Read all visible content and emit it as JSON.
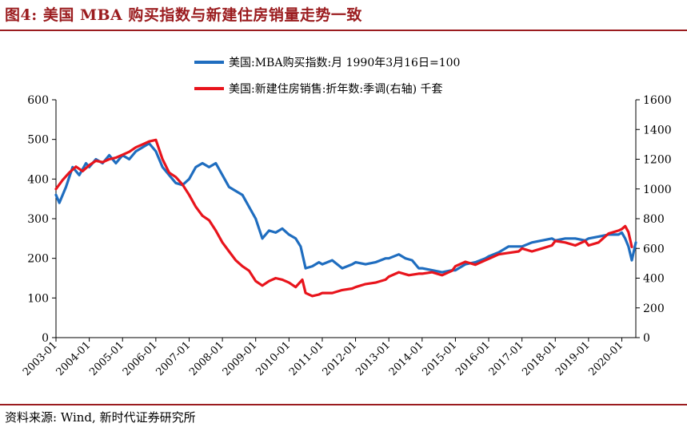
{
  "header": {
    "title": "图4:  美国 MBA 购买指数与新建住房销量走势一致"
  },
  "footer": {
    "source": "资料来源:  Wind, 新时代证券研究所"
  },
  "colors": {
    "title": "#9b1c1f",
    "mba_series": "#1f6dbf",
    "sales_series": "#e8141c",
    "axis": "#000000"
  },
  "chart_data": {
    "type": "line",
    "grid": false,
    "legend_position": "top",
    "x_ticks": [
      "2003-01",
      "2004-01",
      "2005-01",
      "2006-01",
      "2007-01",
      "2008-01",
      "2009-01",
      "2010-01",
      "2011-01",
      "2012-01",
      "2013-01",
      "2014-01",
      "2015-01",
      "2016-01",
      "2017-01",
      "2018-01",
      "2019-01",
      "2020-01"
    ],
    "x_range": [
      2003.0,
      2020.42
    ],
    "y_left": {
      "range": [
        0,
        600
      ],
      "ticks": [
        "0",
        "100",
        "200",
        "300",
        "400",
        "500",
        "600"
      ]
    },
    "y_right": {
      "range": [
        0,
        1600
      ],
      "ticks": [
        "0",
        "200",
        "400",
        "600",
        "800",
        "1000",
        "1200",
        "1400",
        "1600"
      ]
    },
    "series": [
      {
        "name": "美国:MBA购买指数:月 1990年3月16日=100",
        "axis": "left",
        "color": "#1f6dbf",
        "x": [
          2003.0,
          2003.1,
          2003.3,
          2003.5,
          2003.7,
          2003.9,
          2004.0,
          2004.2,
          2004.4,
          2004.6,
          2004.8,
          2005.0,
          2005.2,
          2005.4,
          2005.6,
          2005.8,
          2006.0,
          2006.2,
          2006.4,
          2006.6,
          2006.8,
          2007.0,
          2007.2,
          2007.4,
          2007.6,
          2007.8,
          2008.0,
          2008.2,
          2008.4,
          2008.6,
          2008.8,
          2009.0,
          2009.2,
          2009.4,
          2009.6,
          2009.8,
          2010.0,
          2010.2,
          2010.35,
          2010.5,
          2010.7,
          2010.9,
          2011.0,
          2011.3,
          2011.6,
          2011.9,
          2012.0,
          2012.3,
          2012.6,
          2012.9,
          2013.0,
          2013.3,
          2013.5,
          2013.7,
          2013.9,
          2014.0,
          2014.3,
          2014.6,
          2014.9,
          2015.0,
          2015.3,
          2015.6,
          2015.9,
          2016.0,
          2016.3,
          2016.6,
          2016.9,
          2017.0,
          2017.3,
          2017.6,
          2017.9,
          2018.0,
          2018.3,
          2018.6,
          2018.9,
          2019.0,
          2019.3,
          2019.6,
          2019.9,
          2020.0,
          2020.1,
          2020.2,
          2020.3,
          2020.42
        ],
        "values": [
          360,
          340,
          380,
          430,
          410,
          440,
          430,
          450,
          440,
          460,
          440,
          460,
          450,
          470,
          480,
          490,
          470,
          430,
          410,
          390,
          385,
          400,
          430,
          440,
          430,
          440,
          410,
          380,
          370,
          360,
          330,
          300,
          250,
          270,
          265,
          275,
          260,
          250,
          230,
          175,
          180,
          190,
          185,
          195,
          175,
          185,
          190,
          185,
          190,
          200,
          200,
          210,
          200,
          195,
          175,
          175,
          170,
          165,
          170,
          170,
          185,
          190,
          200,
          205,
          215,
          230,
          230,
          230,
          240,
          245,
          250,
          245,
          250,
          250,
          245,
          250,
          255,
          260,
          260,
          265,
          250,
          230,
          195,
          240
        ]
      },
      {
        "name": "美国:新建住房销售:折年数:季调(右轴) 千套",
        "axis": "right",
        "color": "#e8141c",
        "x": [
          2003.0,
          2003.2,
          2003.4,
          2003.6,
          2003.8,
          2004.0,
          2004.2,
          2004.4,
          2004.6,
          2004.8,
          2005.0,
          2005.2,
          2005.4,
          2005.6,
          2005.8,
          2006.0,
          2006.2,
          2006.4,
          2006.6,
          2006.8,
          2007.0,
          2007.2,
          2007.4,
          2007.6,
          2007.8,
          2008.0,
          2008.2,
          2008.4,
          2008.6,
          2008.8,
          2009.0,
          2009.2,
          2009.4,
          2009.6,
          2009.8,
          2010.0,
          2010.2,
          2010.4,
          2010.5,
          2010.7,
          2010.9,
          2011.0,
          2011.3,
          2011.6,
          2011.9,
          2012.0,
          2012.3,
          2012.6,
          2012.9,
          2013.0,
          2013.3,
          2013.6,
          2013.9,
          2014.0,
          2014.3,
          2014.6,
          2014.9,
          2015.0,
          2015.3,
          2015.6,
          2015.9,
          2016.0,
          2016.3,
          2016.6,
          2016.9,
          2017.0,
          2017.3,
          2017.6,
          2017.9,
          2018.0,
          2018.3,
          2018.6,
          2018.9,
          2019.0,
          2019.3,
          2019.6,
          2019.9,
          2020.0,
          2020.1,
          2020.2,
          2020.3
        ],
        "values": [
          1000,
          1060,
          1110,
          1150,
          1120,
          1160,
          1190,
          1180,
          1200,
          1210,
          1230,
          1250,
          1280,
          1300,
          1320,
          1330,
          1200,
          1110,
          1080,
          1030,
          960,
          880,
          820,
          790,
          720,
          640,
          580,
          520,
          480,
          450,
          380,
          350,
          380,
          400,
          390,
          370,
          340,
          390,
          300,
          280,
          290,
          300,
          300,
          320,
          330,
          340,
          360,
          370,
          390,
          410,
          440,
          420,
          430,
          430,
          440,
          420,
          450,
          480,
          510,
          490,
          520,
          530,
          560,
          570,
          580,
          600,
          580,
          600,
          620,
          650,
          640,
          620,
          650,
          620,
          640,
          700,
          720,
          730,
          750,
          710,
          610
        ]
      }
    ]
  }
}
